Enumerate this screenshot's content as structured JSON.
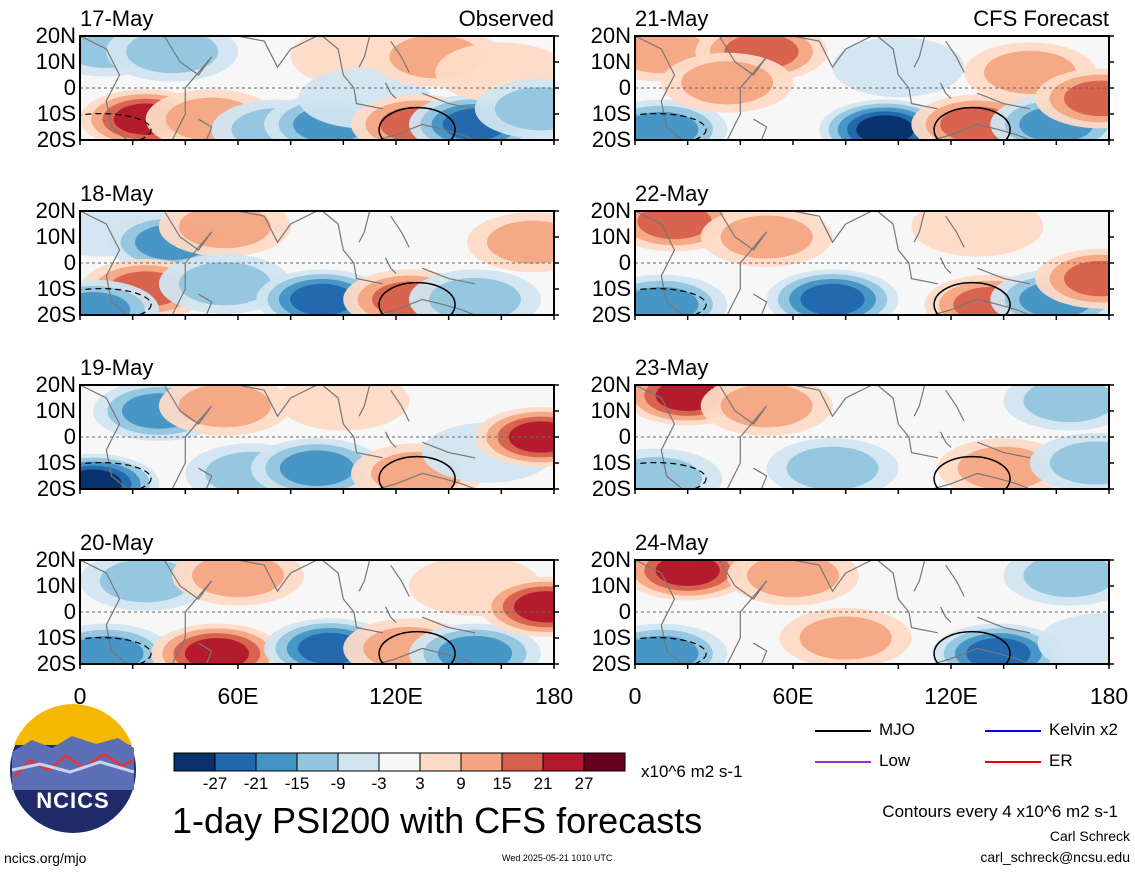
{
  "title": "1-day PSI200 with CFS forecasts",
  "observed_label": "Observed",
  "forecast_label": "CFS Forecast",
  "lat_labels": [
    "20N",
    "10N",
    "0",
    "10S",
    "20S"
  ],
  "lon_labels": [
    "0",
    "60E",
    "120E",
    "180"
  ],
  "colorbar": {
    "ticks": [
      "-27",
      "-21",
      "-15",
      "-9",
      "-3",
      "3",
      "9",
      "15",
      "21",
      "27"
    ],
    "units": "x10^6 m2 s-1",
    "colors": [
      "#08306b",
      "#2166ac",
      "#4393c3",
      "#92c5de",
      "#d1e5f0",
      "#f7f7f7",
      "#fddbc7",
      "#f4a582",
      "#d6604d",
      "#b2182b",
      "#67001f"
    ]
  },
  "legend": [
    {
      "label": "MJO",
      "color": "#000000"
    },
    {
      "label": "Kelvin x2",
      "color": "#0000ee"
    },
    {
      "label": "Low",
      "color": "#9933cc"
    },
    {
      "label": "ER",
      "color": "#ee0000"
    }
  ],
  "contour_note": "Contours every 4 x10^6 m2 s-1",
  "author": "Carl Schreck",
  "email": "carl_schreck@ncsu.edu",
  "website": "ncics.org/mjo",
  "timestamp": "Wed 2025-05-21 1010 UTC",
  "logo_text": "NCICS",
  "chart_data": {
    "type": "heatmap",
    "variable": "PSI200",
    "units": "x10^6 m2 s-1",
    "xlim": [
      0,
      180
    ],
    "ylim": [
      -20,
      20
    ],
    "panels": [
      {
        "date": "17-May",
        "source": "Observed",
        "anomalies": [
          {
            "lon": 10,
            "lat": 16,
            "value": -9
          },
          {
            "lon": 35,
            "lat": 14,
            "value": -12
          },
          {
            "lon": 25,
            "lat": -12,
            "value": 21
          },
          {
            "lon": 50,
            "lat": -12,
            "value": 9
          },
          {
            "lon": 75,
            "lat": -16,
            "value": -12
          },
          {
            "lon": 95,
            "lat": -14,
            "value": -15
          },
          {
            "lon": 105,
            "lat": 12,
            "value": 6
          },
          {
            "lon": 108,
            "lat": -4,
            "value": -6
          },
          {
            "lon": 128,
            "lat": -14,
            "value": 18
          },
          {
            "lon": 135,
            "lat": 12,
            "value": 9
          },
          {
            "lon": 150,
            "lat": -14,
            "value": -21
          },
          {
            "lon": 160,
            "lat": 6,
            "value": 6
          },
          {
            "lon": 175,
            "lat": -8,
            "value": -12
          }
        ]
      },
      {
        "date": "18-May",
        "source": "Observed",
        "anomalies": [
          {
            "lon": 8,
            "lat": 14,
            "value": -6
          },
          {
            "lon": 35,
            "lat": 8,
            "value": -15
          },
          {
            "lon": 25,
            "lat": -10,
            "value": 15
          },
          {
            "lon": 55,
            "lat": 14,
            "value": 9
          },
          {
            "lon": 55,
            "lat": -8,
            "value": -9
          },
          {
            "lon": 92,
            "lat": -14,
            "value": -21
          },
          {
            "lon": 125,
            "lat": -14,
            "value": 15
          },
          {
            "lon": 150,
            "lat": -14,
            "value": -12
          },
          {
            "lon": 172,
            "lat": 8,
            "value": 12
          },
          {
            "lon": 5,
            "lat": -18,
            "value": -15
          }
        ]
      },
      {
        "date": "19-May",
        "source": "Observed",
        "anomalies": [
          {
            "lon": 5,
            "lat": -18,
            "value": -27
          },
          {
            "lon": 30,
            "lat": 10,
            "value": -15
          },
          {
            "lon": 55,
            "lat": 12,
            "value": 9
          },
          {
            "lon": 65,
            "lat": -14,
            "value": -9
          },
          {
            "lon": 90,
            "lat": -12,
            "value": -18
          },
          {
            "lon": 100,
            "lat": 14,
            "value": 6
          },
          {
            "lon": 128,
            "lat": -14,
            "value": 9
          },
          {
            "lon": 155,
            "lat": -6,
            "value": -6
          },
          {
            "lon": 175,
            "lat": 0,
            "value": 21
          }
        ]
      },
      {
        "date": "20-May",
        "source": "Observed",
        "anomalies": [
          {
            "lon": 10,
            "lat": -16,
            "value": -18
          },
          {
            "lon": 25,
            "lat": 12,
            "value": -9
          },
          {
            "lon": 52,
            "lat": -16,
            "value": 24
          },
          {
            "lon": 60,
            "lat": 14,
            "value": 9
          },
          {
            "lon": 95,
            "lat": -14,
            "value": -24
          },
          {
            "lon": 125,
            "lat": -14,
            "value": 12
          },
          {
            "lon": 150,
            "lat": -16,
            "value": -15
          },
          {
            "lon": 150,
            "lat": 10,
            "value": 6
          },
          {
            "lon": 177,
            "lat": 2,
            "value": 21
          }
        ]
      },
      {
        "date": "21-May",
        "source": "CFS Forecast",
        "anomalies": [
          {
            "lon": 10,
            "lat": -16,
            "value": -18
          },
          {
            "lon": 10,
            "lat": 14,
            "value": 12
          },
          {
            "lon": 48,
            "lat": 14,
            "value": 15
          },
          {
            "lon": 35,
            "lat": 2,
            "value": 9
          },
          {
            "lon": 95,
            "lat": -16,
            "value": -27
          },
          {
            "lon": 100,
            "lat": 8,
            "value": -6
          },
          {
            "lon": 130,
            "lat": -14,
            "value": 18
          },
          {
            "lon": 150,
            "lat": 6,
            "value": 9
          },
          {
            "lon": 160,
            "lat": -14,
            "value": -18
          },
          {
            "lon": 177,
            "lat": -4,
            "value": 18
          }
        ]
      },
      {
        "date": "22-May",
        "source": "CFS Forecast",
        "anomalies": [
          {
            "lon": 15,
            "lat": 16,
            "value": 18
          },
          {
            "lon": 10,
            "lat": -16,
            "value": -15
          },
          {
            "lon": 50,
            "lat": 10,
            "value": 9
          },
          {
            "lon": 75,
            "lat": -14,
            "value": -24
          },
          {
            "lon": 135,
            "lat": -16,
            "value": 18
          },
          {
            "lon": 160,
            "lat": -14,
            "value": -18
          },
          {
            "lon": 130,
            "lat": 14,
            "value": 6
          },
          {
            "lon": 177,
            "lat": -6,
            "value": 15
          }
        ]
      },
      {
        "date": "23-May",
        "source": "CFS Forecast",
        "anomalies": [
          {
            "lon": 20,
            "lat": 16,
            "value": 21
          },
          {
            "lon": 8,
            "lat": -16,
            "value": -12
          },
          {
            "lon": 75,
            "lat": -12,
            "value": -9
          },
          {
            "lon": 140,
            "lat": -12,
            "value": 12
          },
          {
            "lon": 165,
            "lat": 14,
            "value": -12
          },
          {
            "lon": 175,
            "lat": -10,
            "value": -9
          },
          {
            "lon": 50,
            "lat": 12,
            "value": 9
          }
        ]
      },
      {
        "date": "24-May",
        "source": "CFS Forecast",
        "anomalies": [
          {
            "lon": 20,
            "lat": 16,
            "value": 24
          },
          {
            "lon": 10,
            "lat": -16,
            "value": -15
          },
          {
            "lon": 80,
            "lat": -10,
            "value": 9
          },
          {
            "lon": 138,
            "lat": -16,
            "value": -24
          },
          {
            "lon": 165,
            "lat": 14,
            "value": -9
          },
          {
            "lon": 60,
            "lat": 14,
            "value": 9
          },
          {
            "lon": 178,
            "lat": -12,
            "value": -6
          }
        ]
      }
    ]
  }
}
